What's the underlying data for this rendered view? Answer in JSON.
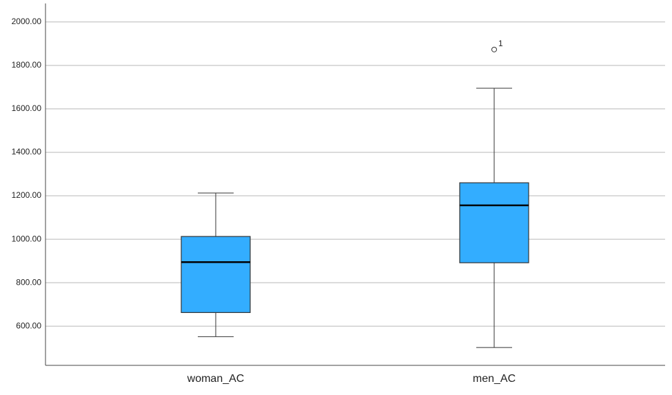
{
  "chart_data": {
    "type": "box",
    "categories": [
      "woman_AC",
      "men_AC"
    ],
    "series": [
      {
        "color": "#33adff",
        "min": [
          552,
          502
        ],
        "q1": [
          663,
          892
        ],
        "median": [
          895,
          1156
        ],
        "q3": [
          1013,
          1260
        ],
        "max": [
          1213,
          1695
        ]
      }
    ],
    "outliers": [
      [],
      [
        1873
      ]
    ],
    "outlier_labels": [
      [],
      [
        "1"
      ]
    ],
    "ylim": [
      420,
      2085
    ],
    "yticks": [
      {
        "value": 600,
        "label": "600.00"
      },
      {
        "value": 800,
        "label": "800.00"
      },
      {
        "value": 1000,
        "label": "1000.00"
      },
      {
        "value": 1200,
        "label": "1200.00"
      },
      {
        "value": 1400,
        "label": "1400.00"
      },
      {
        "value": 1600,
        "label": "1600.00"
      },
      {
        "value": 1800,
        "label": "1800.00"
      },
      {
        "value": 2000,
        "label": "2000.00"
      }
    ],
    "grid": true
  }
}
